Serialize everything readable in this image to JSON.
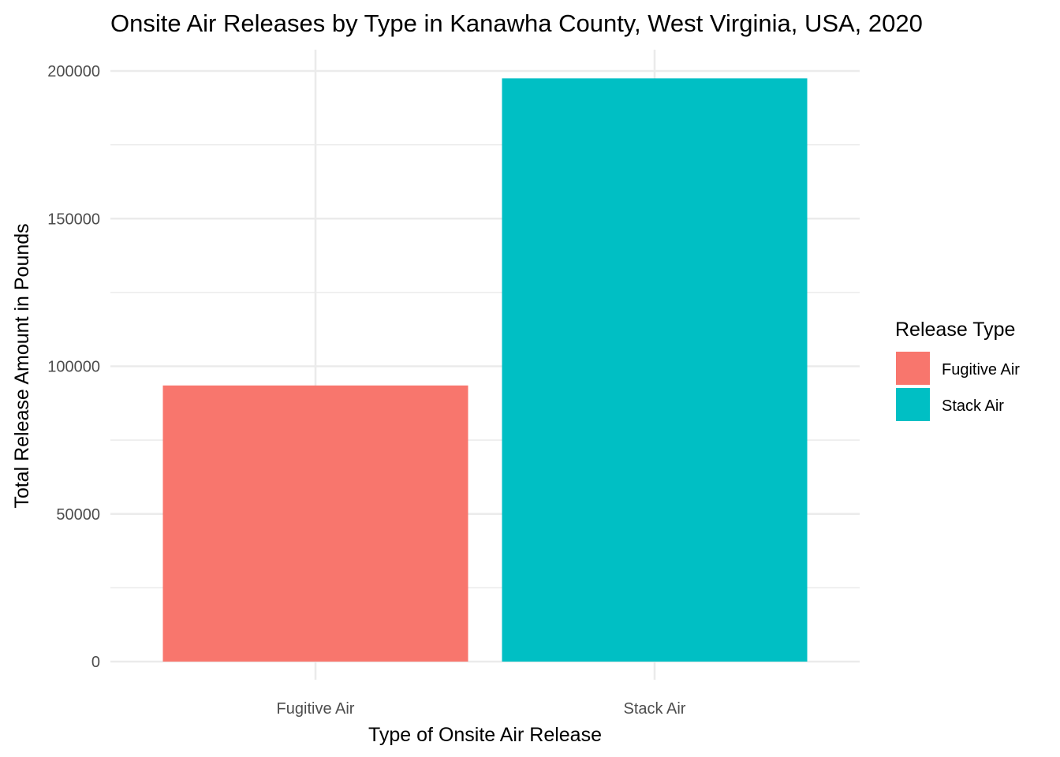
{
  "chart_data": {
    "type": "bar",
    "title": "Onsite Air Releases by Type in Kanawha County, West Virginia, USA, 2020",
    "xlabel": "Type of Onsite Air Release",
    "ylabel": "Total Release Amount in Pounds",
    "categories": [
      "Fugitive Air",
      "Stack Air"
    ],
    "values": [
      93500,
      197500
    ],
    "colors": [
      "#F8766D",
      "#00BFC4"
    ],
    "ylim": [
      0,
      200000
    ],
    "yticks": [
      0,
      50000,
      100000,
      150000,
      200000
    ],
    "ytick_labels": [
      "0",
      "50000",
      "100000",
      "150000",
      "200000"
    ],
    "grid": true,
    "legend": {
      "title": "Release Type",
      "placement": "right",
      "entries": [
        "Fugitive Air",
        "Stack Air"
      ]
    }
  }
}
